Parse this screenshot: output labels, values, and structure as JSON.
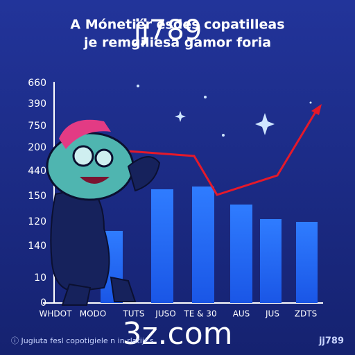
{
  "title_lines": [
    "A Mónetiér esdes copatilleas",
    "je remgiliesa gamor foria"
  ],
  "y_labels": [
    "660",
    "390",
    "750",
    "200",
    "440",
    "150",
    "120",
    "140",
    "10",
    "0"
  ],
  "x_labels": [
    "WHDOT",
    "MODO",
    "TUTS",
    "JUSO",
    "TE & 30",
    "AUS",
    "JUS",
    "ZDTS"
  ],
  "watermark_top": "jj789",
  "watermark_bottom": "3z.com",
  "footer": "ⓘ Jugiuta fesl copotigiele n in rlatijr s",
  "brand": "jj789"
}
